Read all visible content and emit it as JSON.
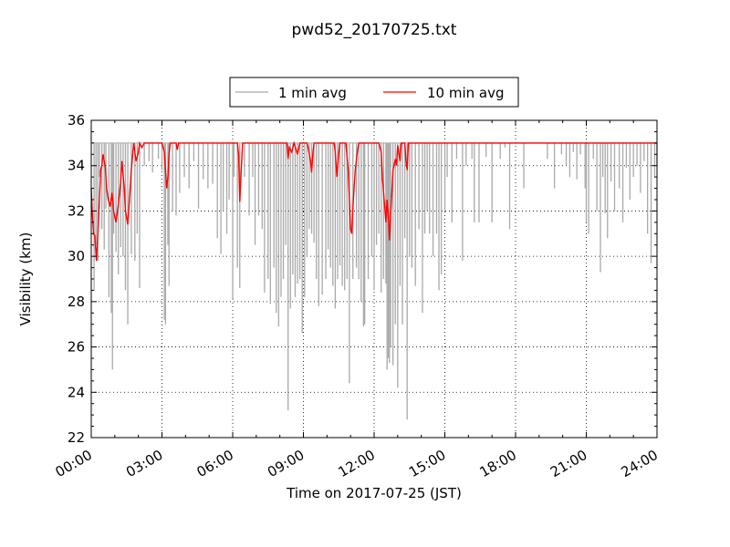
{
  "chart_data": {
    "type": "line",
    "title": "pwd52_20170725.txt",
    "xlabel": "Time on 2017-07-25 (JST)",
    "ylabel": "Visibility (km)",
    "xlim_hours": [
      0,
      24
    ],
    "ylim": [
      22,
      36
    ],
    "xticks": [
      "00:00",
      "03:00",
      "06:00",
      "09:00",
      "12:00",
      "15:00",
      "18:00",
      "21:00",
      "24:00"
    ],
    "xtick_hours": [
      0,
      3,
      6,
      9,
      12,
      15,
      18,
      21,
      24
    ],
    "yticks": [
      22,
      24,
      26,
      28,
      30,
      32,
      34,
      36
    ],
    "grid": true,
    "legend_position": "top-center",
    "series": [
      {
        "name": "1 min avg",
        "color": "#a9a9a9",
        "baseline": 35.0,
        "drops_hour_min": [
          [
            0.12,
            28.5
          ],
          [
            0.2,
            30.5
          ],
          [
            0.28,
            29.8
          ],
          [
            0.35,
            33.5
          ],
          [
            0.45,
            31.2
          ],
          [
            0.55,
            30.3
          ],
          [
            0.62,
            32.1
          ],
          [
            0.75,
            28.2
          ],
          [
            0.85,
            27.5
          ],
          [
            0.95,
            31.0
          ],
          [
            0.9,
            25.0
          ],
          [
            1.05,
            30.2
          ],
          [
            1.15,
            29.2
          ],
          [
            1.25,
            30.4
          ],
          [
            1.35,
            30.0
          ],
          [
            1.45,
            28.5
          ],
          [
            1.55,
            27.0
          ],
          [
            1.7,
            30.1
          ],
          [
            1.85,
            29.8
          ],
          [
            1.95,
            31.0
          ],
          [
            2.05,
            28.6
          ],
          [
            2.25,
            34.0
          ],
          [
            2.45,
            34.2
          ],
          [
            2.6,
            33.7
          ],
          [
            2.85,
            34.3
          ],
          [
            3.0,
            33.8
          ],
          [
            3.1,
            27.2
          ],
          [
            3.15,
            27.0
          ],
          [
            3.25,
            30.5
          ],
          [
            3.3,
            28.7
          ],
          [
            3.45,
            32.0
          ],
          [
            3.6,
            31.8
          ],
          [
            3.75,
            32.8
          ],
          [
            3.95,
            33.5
          ],
          [
            4.15,
            33.0
          ],
          [
            4.35,
            34.2
          ],
          [
            4.55,
            32.1
          ],
          [
            4.75,
            33.4
          ],
          [
            4.95,
            33.0
          ],
          [
            5.15,
            33.2
          ],
          [
            5.35,
            30.8
          ],
          [
            5.5,
            30.1
          ],
          [
            5.6,
            32.0
          ],
          [
            5.75,
            31.0
          ],
          [
            5.85,
            32.5
          ],
          [
            6.0,
            28.1
          ],
          [
            6.05,
            33.5
          ],
          [
            6.2,
            29.5
          ],
          [
            6.3,
            28.6
          ],
          [
            6.5,
            33.5
          ],
          [
            6.7,
            31.8
          ],
          [
            6.85,
            33.5
          ],
          [
            6.95,
            30.5
          ],
          [
            7.1,
            31.8
          ],
          [
            7.25,
            31.2
          ],
          [
            7.35,
            28.4
          ],
          [
            7.5,
            29.0
          ],
          [
            7.6,
            27.9
          ],
          [
            7.75,
            29.5
          ],
          [
            7.85,
            27.5
          ],
          [
            7.95,
            26.9
          ],
          [
            8.05,
            28.2
          ],
          [
            8.15,
            29.0
          ],
          [
            8.25,
            30.5
          ],
          [
            8.35,
            23.2
          ],
          [
            8.45,
            27.7
          ],
          [
            8.55,
            29.2
          ],
          [
            8.65,
            28.2
          ],
          [
            8.75,
            28.8
          ],
          [
            8.85,
            29.0
          ],
          [
            8.95,
            26.6
          ],
          [
            9.05,
            28.2
          ],
          [
            9.15,
            30.0
          ],
          [
            9.25,
            31.2
          ],
          [
            9.35,
            31.0
          ],
          [
            9.45,
            30.6
          ],
          [
            9.55,
            29.0
          ],
          [
            9.65,
            27.8
          ],
          [
            9.8,
            28.3
          ],
          [
            9.95,
            29.0
          ],
          [
            10.05,
            30.3
          ],
          [
            10.15,
            29.5
          ],
          [
            10.25,
            28.7
          ],
          [
            10.35,
            27.7
          ],
          [
            10.45,
            29.0
          ],
          [
            10.55,
            29.6
          ],
          [
            10.65,
            28.7
          ],
          [
            10.75,
            28.5
          ],
          [
            10.85,
            29.0
          ],
          [
            10.95,
            24.4
          ],
          [
            11.1,
            29.0
          ],
          [
            11.25,
            29.5
          ],
          [
            11.35,
            29.0
          ],
          [
            11.45,
            28.0
          ],
          [
            11.55,
            26.9
          ],
          [
            11.6,
            27.0
          ],
          [
            11.75,
            29.0
          ],
          [
            11.9,
            30.0
          ],
          [
            12.0,
            28.5
          ],
          [
            12.1,
            30.5
          ],
          [
            12.2,
            31.0
          ],
          [
            12.3,
            28.4
          ],
          [
            12.4,
            29.0
          ],
          [
            12.5,
            28.8
          ],
          [
            12.55,
            25.0
          ],
          [
            12.6,
            25.5
          ],
          [
            12.65,
            25.3
          ],
          [
            12.7,
            26.0
          ],
          [
            12.8,
            25.2
          ],
          [
            12.9,
            27.0
          ],
          [
            13.0,
            24.2
          ],
          [
            13.1,
            28.7
          ],
          [
            13.2,
            27.0
          ],
          [
            13.3,
            30.8
          ],
          [
            13.4,
            22.8
          ],
          [
            13.5,
            30.0
          ],
          [
            13.6,
            29.5
          ],
          [
            13.75,
            28.7
          ],
          [
            13.9,
            31.2
          ],
          [
            14.05,
            27.5
          ],
          [
            14.15,
            31.0
          ],
          [
            14.25,
            32.0
          ],
          [
            14.35,
            31.0
          ],
          [
            14.5,
            30.0
          ],
          [
            14.65,
            31.0
          ],
          [
            14.75,
            28.5
          ],
          [
            14.85,
            29.2
          ],
          [
            15.0,
            32.0
          ],
          [
            15.1,
            33.5
          ],
          [
            15.3,
            31.5
          ],
          [
            15.5,
            34.3
          ],
          [
            15.75,
            29.8
          ],
          [
            15.9,
            34.0
          ],
          [
            16.15,
            34.3
          ],
          [
            16.25,
            31.5
          ],
          [
            16.45,
            31.5
          ],
          [
            16.75,
            34.4
          ],
          [
            17.0,
            31.5
          ],
          [
            17.35,
            34.3
          ],
          [
            17.55,
            34.8
          ],
          [
            17.75,
            31.2
          ],
          [
            18.35,
            33.0
          ],
          [
            19.35,
            34.3
          ],
          [
            19.65,
            33.0
          ],
          [
            19.95,
            34.5
          ],
          [
            20.15,
            34.0
          ],
          [
            20.3,
            33.5
          ],
          [
            20.45,
            34.6
          ],
          [
            20.6,
            33.4
          ],
          [
            20.75,
            34.5
          ],
          [
            20.95,
            33.0
          ],
          [
            21.0,
            31.5
          ],
          [
            21.1,
            31.0
          ],
          [
            21.3,
            34.3
          ],
          [
            21.45,
            32.0
          ],
          [
            21.6,
            29.3
          ],
          [
            21.7,
            33.5
          ],
          [
            21.8,
            31.9
          ],
          [
            21.9,
            30.8
          ],
          [
            22.05,
            33.3
          ],
          [
            22.2,
            32.0
          ],
          [
            22.4,
            33.0
          ],
          [
            22.55,
            31.5
          ],
          [
            22.7,
            33.9
          ],
          [
            22.85,
            32.5
          ],
          [
            23.0,
            33.5
          ],
          [
            23.15,
            34.0
          ],
          [
            23.3,
            32.8
          ],
          [
            23.45,
            34.2
          ],
          [
            23.6,
            31.0
          ],
          [
            23.75,
            29.7
          ],
          [
            23.9,
            33.5
          ],
          [
            24.0,
            34.0
          ]
        ]
      },
      {
        "name": "10 min avg",
        "color": "#ff0000",
        "points_hour_value": [
          [
            0.0,
            33.0
          ],
          [
            0.05,
            31.8
          ],
          [
            0.1,
            31.0
          ],
          [
            0.15,
            30.9
          ],
          [
            0.22,
            29.8
          ],
          [
            0.28,
            31.0
          ],
          [
            0.35,
            32.5
          ],
          [
            0.4,
            33.8
          ],
          [
            0.45,
            34.0
          ],
          [
            0.5,
            34.5
          ],
          [
            0.55,
            34.2
          ],
          [
            0.6,
            33.9
          ],
          [
            0.65,
            33.0
          ],
          [
            0.72,
            32.5
          ],
          [
            0.8,
            32.2
          ],
          [
            0.88,
            32.8
          ],
          [
            0.95,
            32.0
          ],
          [
            1.05,
            31.5
          ],
          [
            1.15,
            32.3
          ],
          [
            1.25,
            33.3
          ],
          [
            1.3,
            34.2
          ],
          [
            1.35,
            33.6
          ],
          [
            1.4,
            33.0
          ],
          [
            1.45,
            32.0
          ],
          [
            1.5,
            31.7
          ],
          [
            1.55,
            31.4
          ],
          [
            1.62,
            32.5
          ],
          [
            1.7,
            33.8
          ],
          [
            1.8,
            35.0
          ],
          [
            1.9,
            34.2
          ],
          [
            2.0,
            34.6
          ],
          [
            2.05,
            35.0
          ],
          [
            2.15,
            34.8
          ],
          [
            2.25,
            35.0
          ],
          [
            3.0,
            35.0
          ],
          [
            3.1,
            34.6
          ],
          [
            3.15,
            33.8
          ],
          [
            3.2,
            33.0
          ],
          [
            3.25,
            33.5
          ],
          [
            3.3,
            34.5
          ],
          [
            3.35,
            35.0
          ],
          [
            3.6,
            35.0
          ],
          [
            3.65,
            34.7
          ],
          [
            3.7,
            35.0
          ],
          [
            6.2,
            35.0
          ],
          [
            6.25,
            34.5
          ],
          [
            6.3,
            32.4
          ],
          [
            6.35,
            33.5
          ],
          [
            6.42,
            35.0
          ],
          [
            8.3,
            35.0
          ],
          [
            8.35,
            34.3
          ],
          [
            8.4,
            34.8
          ],
          [
            8.5,
            34.6
          ],
          [
            8.6,
            35.0
          ],
          [
            8.75,
            34.5
          ],
          [
            8.85,
            35.0
          ],
          [
            9.15,
            35.0
          ],
          [
            9.2,
            34.8
          ],
          [
            9.3,
            34.2
          ],
          [
            9.35,
            33.7
          ],
          [
            9.4,
            34.5
          ],
          [
            9.45,
            35.0
          ],
          [
            10.3,
            35.0
          ],
          [
            10.35,
            34.6
          ],
          [
            10.42,
            33.5
          ],
          [
            10.5,
            34.6
          ],
          [
            10.55,
            35.0
          ],
          [
            10.8,
            35.0
          ],
          [
            10.85,
            34.4
          ],
          [
            10.9,
            33.8
          ],
          [
            10.95,
            32.5
          ],
          [
            11.0,
            31.2
          ],
          [
            11.05,
            31.0
          ],
          [
            11.1,
            32.2
          ],
          [
            11.2,
            33.8
          ],
          [
            11.3,
            34.7
          ],
          [
            11.35,
            35.0
          ],
          [
            12.2,
            35.0
          ],
          [
            12.3,
            34.6
          ],
          [
            12.35,
            33.5
          ],
          [
            12.45,
            32.2
          ],
          [
            12.5,
            31.5
          ],
          [
            12.55,
            32.5
          ],
          [
            12.6,
            31.8
          ],
          [
            12.65,
            30.7
          ],
          [
            12.72,
            32.2
          ],
          [
            12.8,
            33.8
          ],
          [
            12.9,
            34.3
          ],
          [
            12.95,
            34.0
          ],
          [
            13.0,
            34.9
          ],
          [
            13.1,
            34.2
          ],
          [
            13.15,
            35.0
          ],
          [
            13.3,
            35.0
          ],
          [
            13.35,
            34.2
          ],
          [
            13.4,
            33.8
          ],
          [
            13.45,
            35.0
          ],
          [
            24.0,
            35.0
          ]
        ]
      }
    ]
  }
}
